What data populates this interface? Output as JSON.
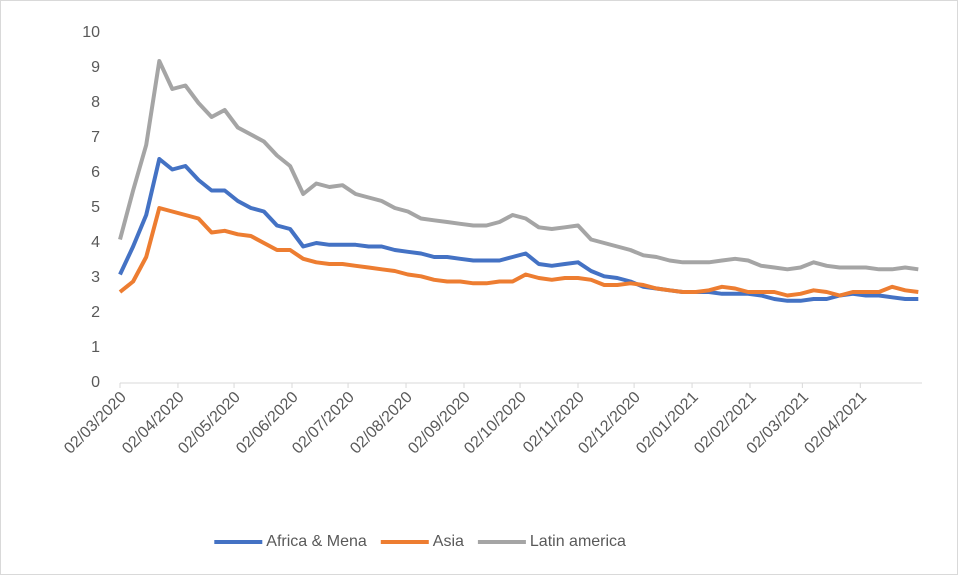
{
  "chart_data": {
    "type": "line",
    "x": [
      "02/03/2020",
      "09/03/2020",
      "16/03/2020",
      "23/03/2020",
      "30/03/2020",
      "06/04/2020",
      "13/04/2020",
      "20/04/2020",
      "27/04/2020",
      "04/05/2020",
      "11/05/2020",
      "18/05/2020",
      "25/05/2020",
      "01/06/2020",
      "08/06/2020",
      "15/06/2020",
      "22/06/2020",
      "29/06/2020",
      "06/07/2020",
      "13/07/2020",
      "20/07/2020",
      "27/07/2020",
      "03/08/2020",
      "10/08/2020",
      "17/08/2020",
      "24/08/2020",
      "31/08/2020",
      "07/09/2020",
      "14/09/2020",
      "21/09/2020",
      "28/09/2020",
      "05/10/2020",
      "12/10/2020",
      "19/10/2020",
      "26/10/2020",
      "02/11/2020",
      "09/11/2020",
      "16/11/2020",
      "23/11/2020",
      "30/11/2020",
      "07/12/2020",
      "14/12/2020",
      "21/12/2020",
      "28/12/2020",
      "04/01/2021",
      "11/01/2021",
      "18/01/2021",
      "25/01/2021",
      "01/02/2021",
      "08/02/2021",
      "15/02/2021",
      "22/02/2021",
      "01/03/2021",
      "08/03/2021",
      "15/03/2021",
      "22/03/2021",
      "29/03/2021",
      "05/04/2021",
      "12/04/2021",
      "19/04/2021",
      "26/04/2021",
      "03/05/2021"
    ],
    "series": [
      {
        "name": "Africa & Mena",
        "color": "#4472c4",
        "values": [
          3.1,
          3.9,
          4.8,
          6.4,
          6.1,
          6.2,
          5.8,
          5.5,
          5.5,
          5.2,
          5.0,
          4.9,
          4.5,
          4.4,
          3.9,
          4.0,
          3.95,
          3.95,
          3.95,
          3.9,
          3.9,
          3.8,
          3.75,
          3.7,
          3.6,
          3.6,
          3.55,
          3.5,
          3.5,
          3.5,
          3.6,
          3.7,
          3.4,
          3.35,
          3.4,
          3.45,
          3.2,
          3.05,
          3.0,
          2.9,
          2.75,
          2.7,
          2.65,
          2.6,
          2.6,
          2.6,
          2.55,
          2.55,
          2.55,
          2.5,
          2.4,
          2.35,
          2.35,
          2.4,
          2.4,
          2.5,
          2.55,
          2.5,
          2.5,
          2.45,
          2.4,
          2.4
        ]
      },
      {
        "name": "Asia",
        "color": "#ed7d31",
        "values": [
          2.6,
          2.9,
          3.6,
          5.0,
          4.9,
          4.8,
          4.7,
          4.3,
          4.35,
          4.25,
          4.2,
          4.0,
          3.8,
          3.8,
          3.55,
          3.45,
          3.4,
          3.4,
          3.35,
          3.3,
          3.25,
          3.2,
          3.1,
          3.05,
          2.95,
          2.9,
          2.9,
          2.85,
          2.85,
          2.9,
          2.9,
          3.1,
          3.0,
          2.95,
          3.0,
          3.0,
          2.95,
          2.8,
          2.8,
          2.85,
          2.8,
          2.7,
          2.65,
          2.6,
          2.6,
          2.65,
          2.75,
          2.7,
          2.6,
          2.6,
          2.6,
          2.5,
          2.55,
          2.65,
          2.6,
          2.5,
          2.6,
          2.6,
          2.6,
          2.75,
          2.65,
          2.6
        ]
      },
      {
        "name": "Latin america",
        "color": "#a5a5a5",
        "values": [
          4.1,
          5.5,
          6.8,
          9.2,
          8.4,
          8.5,
          8.0,
          7.6,
          7.8,
          7.3,
          7.1,
          6.9,
          6.5,
          6.2,
          5.4,
          5.7,
          5.6,
          5.65,
          5.4,
          5.3,
          5.2,
          5.0,
          4.9,
          4.7,
          4.65,
          4.6,
          4.55,
          4.5,
          4.5,
          4.6,
          4.8,
          4.7,
          4.45,
          4.4,
          4.45,
          4.5,
          4.1,
          4.0,
          3.9,
          3.8,
          3.65,
          3.6,
          3.5,
          3.45,
          3.45,
          3.45,
          3.5,
          3.55,
          3.5,
          3.35,
          3.3,
          3.25,
          3.3,
          3.45,
          3.35,
          3.3,
          3.3,
          3.3,
          3.25,
          3.25,
          3.3,
          3.25
        ]
      }
    ],
    "xlim": [
      "02/03/2020",
      "05/05/2021"
    ],
    "xticks": [
      "02/03/2020",
      "02/04/2020",
      "02/05/2020",
      "02/06/2020",
      "02/07/2020",
      "02/08/2020",
      "02/09/2020",
      "02/10/2020",
      "02/11/2020",
      "02/12/2020",
      "02/01/2021",
      "02/02/2021",
      "02/03/2021",
      "02/04/2021"
    ],
    "ylim": [
      0,
      10
    ],
    "yticks": [
      0,
      1,
      2,
      3,
      4,
      5,
      6,
      7,
      8,
      9,
      10
    ],
    "grid": false,
    "legend": "bottom"
  }
}
